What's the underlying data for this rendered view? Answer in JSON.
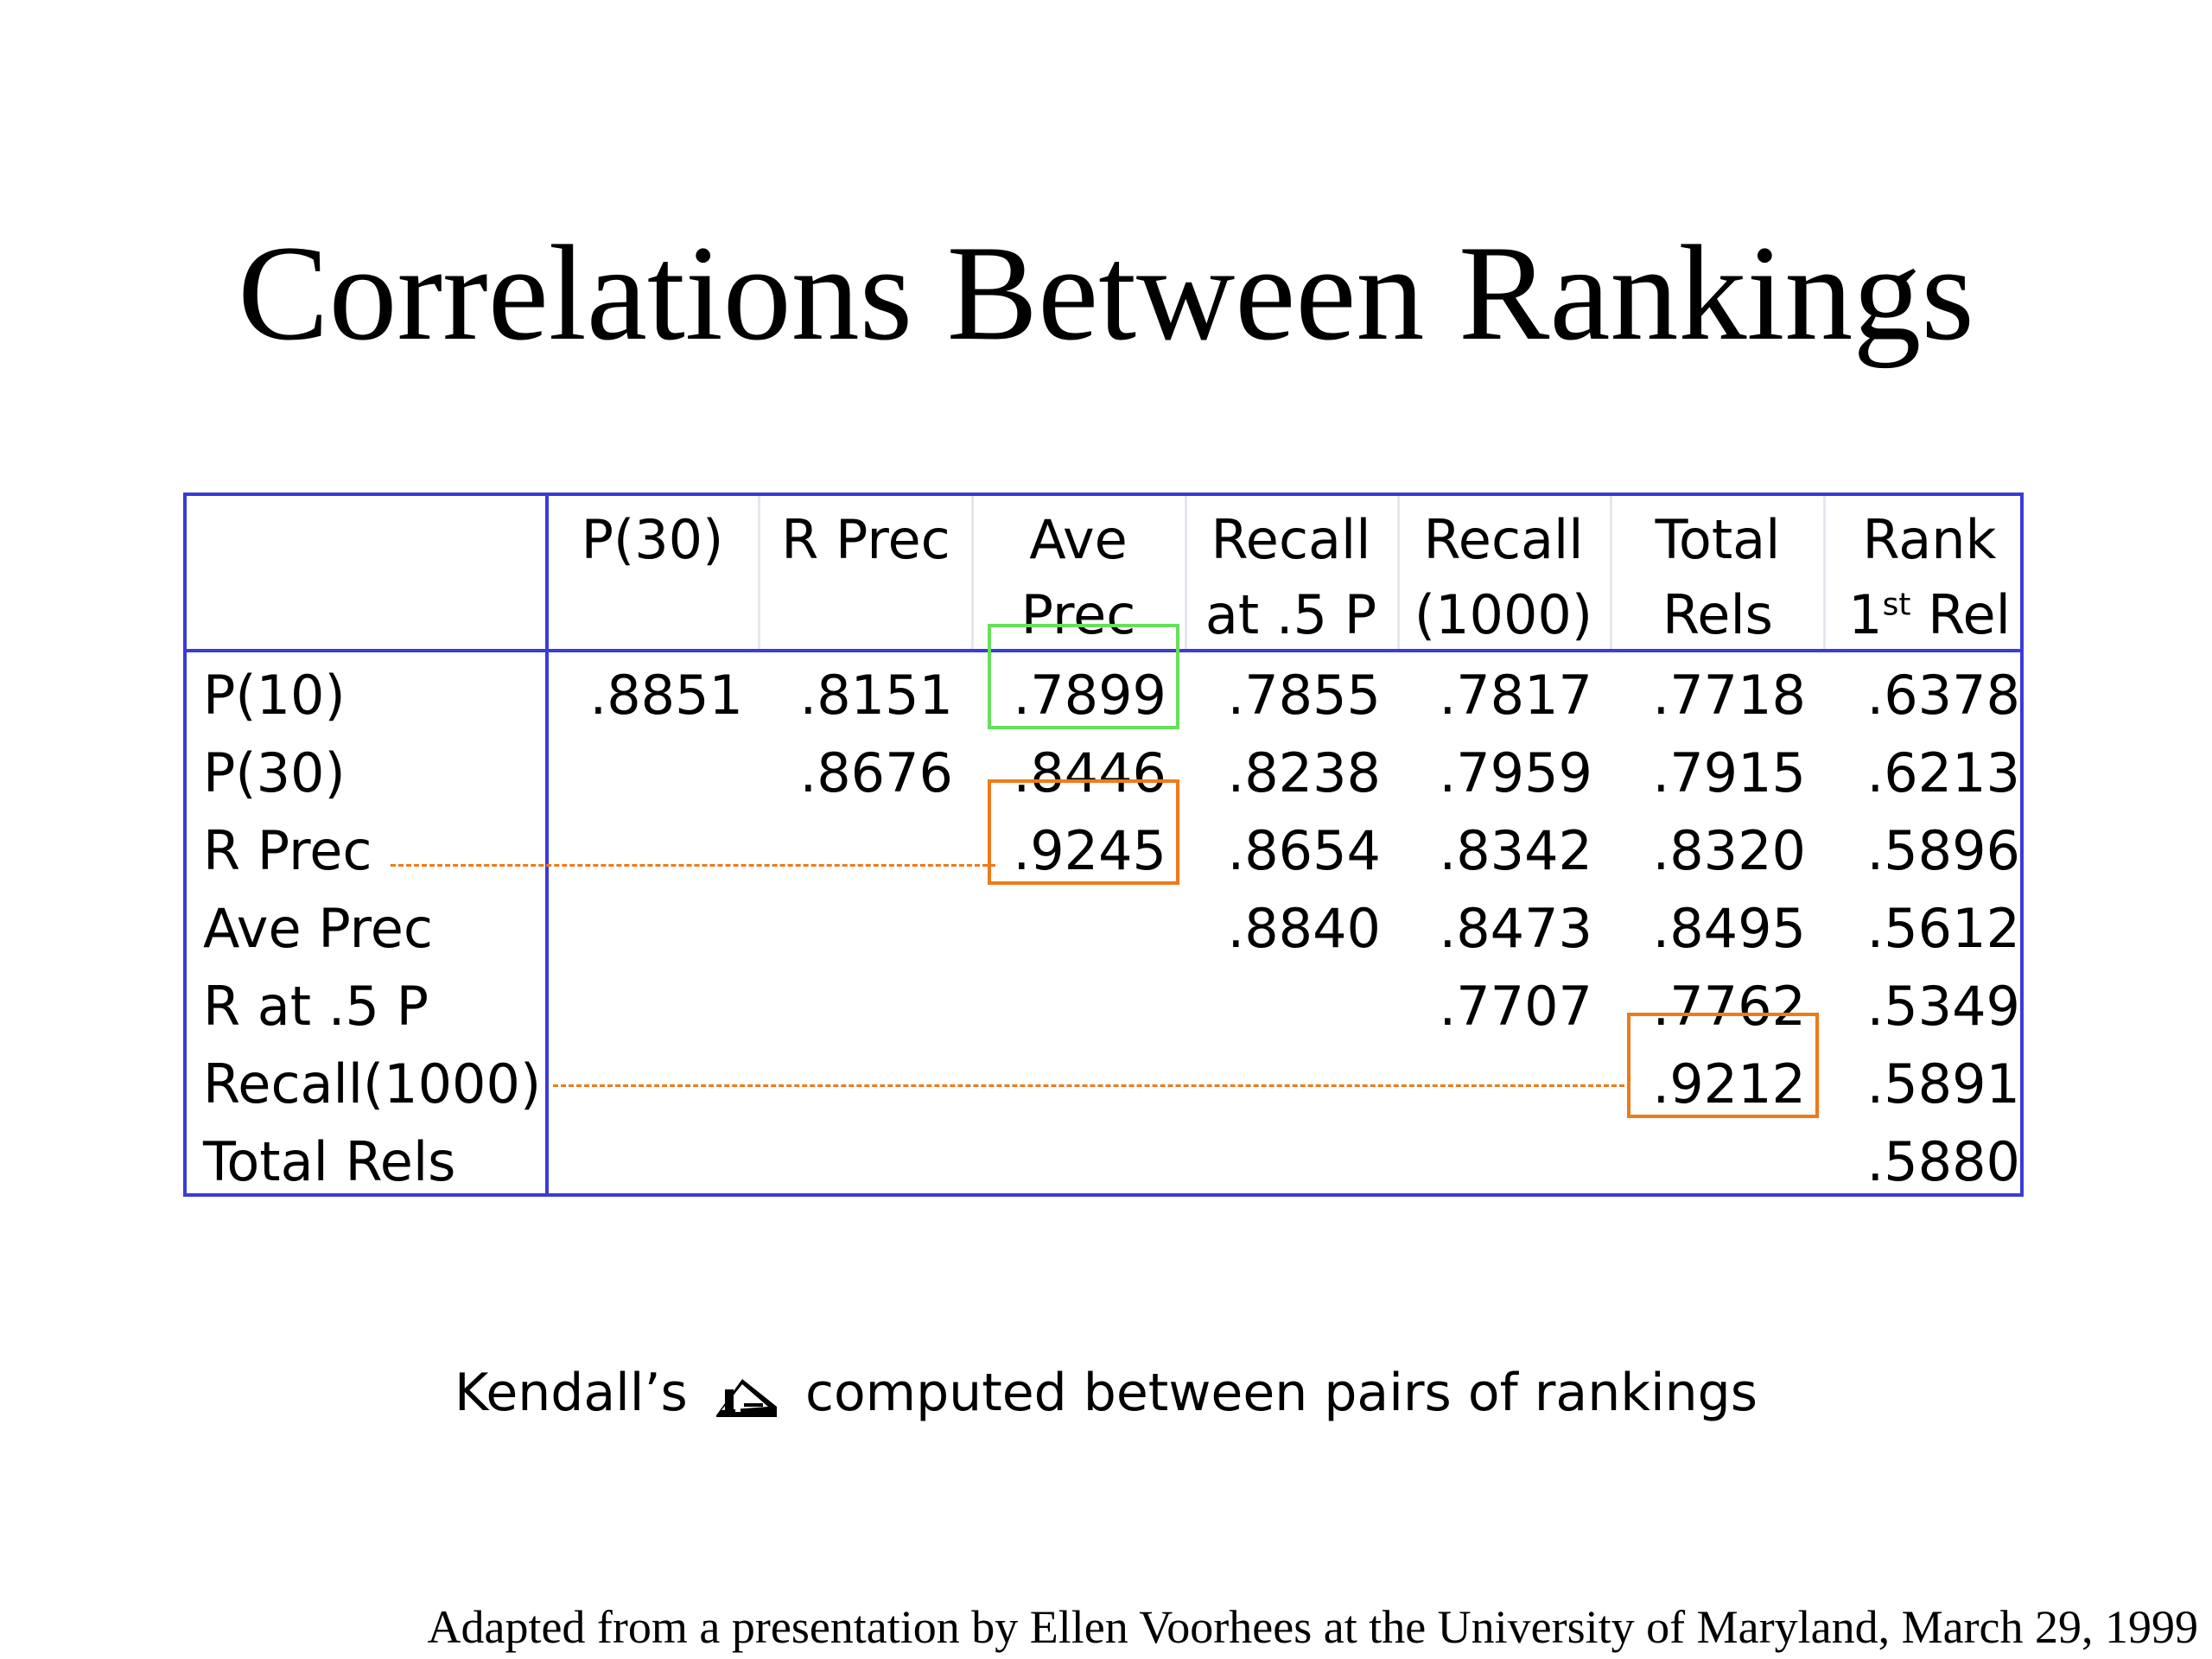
{
  "title": "Correlations Between Rankings",
  "table": {
    "columns": [
      {
        "line1": "P(30)",
        "line2": ""
      },
      {
        "line1": "R Prec",
        "line2": ""
      },
      {
        "line1": "Ave",
        "line2": "Prec"
      },
      {
        "line1": "Recall",
        "line2": "at .5 P"
      },
      {
        "line1": "Recall",
        "line2": "(1000)"
      },
      {
        "line1": "Total",
        "line2": "Rels"
      },
      {
        "line1": "Rank",
        "line2_prefix": "1",
        "line2_sup": "st",
        "line2_suffix": " Rel"
      }
    ],
    "rows": [
      {
        "label": "P(10)",
        "values": [
          ".8851",
          ".8151",
          ".7899",
          ".7855",
          ".7817",
          ".7718",
          ".6378"
        ]
      },
      {
        "label": "P(30)",
        "values": [
          "",
          ".8676",
          ".8446",
          ".8238",
          ".7959",
          ".7915",
          ".6213"
        ]
      },
      {
        "label": "R Prec",
        "values": [
          "",
          "",
          ".9245",
          ".8654",
          ".8342",
          ".8320",
          ".5896"
        ]
      },
      {
        "label": "Ave Prec",
        "values": [
          "",
          "",
          "",
          ".8840",
          ".8473",
          ".8495",
          ".5612"
        ]
      },
      {
        "label": "R at .5 P",
        "values": [
          "",
          "",
          "",
          "",
          ".7707",
          ".7762",
          ".5349"
        ]
      },
      {
        "label": "Recall(1000)",
        "values": [
          "",
          "",
          "",
          "",
          "",
          ".9212",
          ".5891"
        ]
      },
      {
        "label": "Total Rels",
        "values": [
          "",
          "",
          "",
          "",
          "",
          "",
          ".5880"
        ]
      }
    ],
    "highlights": [
      {
        "row": 0,
        "col": 2,
        "color": "#66e05a"
      },
      {
        "row": 2,
        "col": 2,
        "color": "#ef7a1a"
      },
      {
        "row": 5,
        "col": 5,
        "color": "#ef7a1a"
      }
    ],
    "border_color": "#3b3bd6"
  },
  "caption": {
    "before": "Kendall’s",
    "icon": "tau-symbol-icon",
    "after": "computed between pairs of rankings"
  },
  "footer": "Adapted from a presentation by Ellen Voorhees at the University of Maryland, March 29, 1999"
}
